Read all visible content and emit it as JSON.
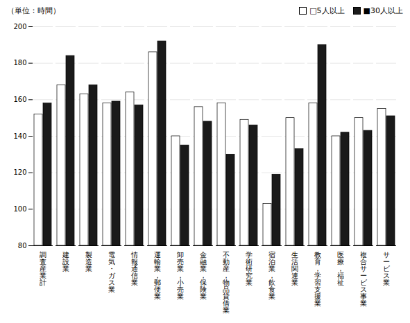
{
  "chart_data": {
    "type": "bar",
    "ylabel": "（単位：時間）",
    "categories": [
      "調査産業計",
      "建設業",
      "製造業",
      "電気・ガス業",
      "情報通信業",
      "運輸業，郵便業",
      "卸売業，小売業",
      "金融業，保険業",
      "不動産，物品貸借業",
      "学術研究業",
      "宿泊業，飲食業",
      "生活関連業",
      "教育，学習支援業",
      "医療，福祉",
      "複合サービス事業",
      "サービス業"
    ],
    "series": [
      {
        "name": "□5人以上",
        "color": "#ffffff",
        "values": [
          152,
          168,
          163,
          158,
          164,
          186,
          140,
          156,
          158,
          149,
          103,
          150,
          158,
          140,
          150,
          155
        ]
      },
      {
        "name": "■30人以上",
        "color": "#1a1a1a",
        "values": [
          158,
          184,
          168,
          159,
          157,
          192,
          135,
          148,
          130,
          146,
          119,
          133,
          190,
          142,
          143,
          151
        ]
      }
    ],
    "ylim": [
      80,
      200
    ],
    "yticks": [
      80,
      100,
      120,
      140,
      160,
      180,
      200
    ],
    "grid": true,
    "legend": "upper right"
  }
}
